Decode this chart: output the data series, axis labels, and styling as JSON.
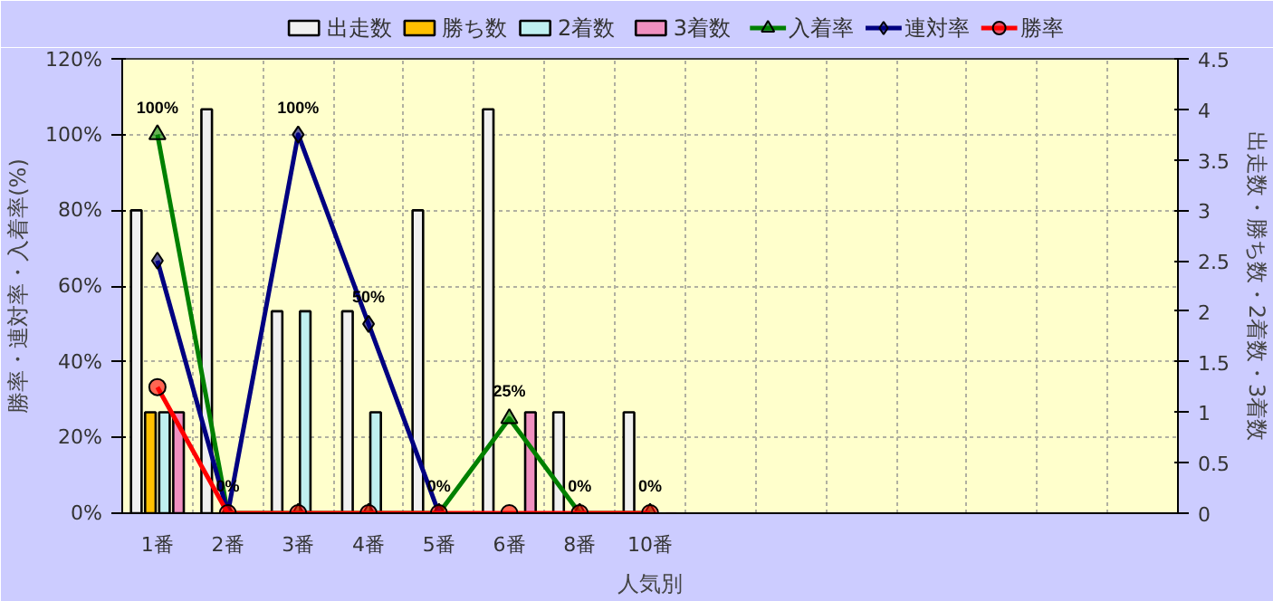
{
  "chart_data": {
    "type": "bar",
    "xlabel": "人気別",
    "ylabel": "勝率・連対率・入着率(%)",
    "y2label": "出走数・勝ち数・2着数・3着数",
    "categories": [
      "1番",
      "2番",
      "3番",
      "4番",
      "5番",
      "6番",
      "8番",
      "10番",
      null,
      null,
      null,
      null,
      null,
      null,
      null
    ],
    "series": [
      {
        "name": "出走数",
        "axis": "y2",
        "color": "#f0f0f0",
        "values": [
          3,
          4,
          2,
          2,
          3,
          4,
          1,
          1,
          null,
          null,
          null,
          null,
          null,
          null,
          null
        ]
      },
      {
        "name": "勝ち数",
        "axis": "y2",
        "color": "#ffc000",
        "values": [
          1,
          0,
          0,
          0,
          0,
          0,
          0,
          0,
          null,
          null,
          null,
          null,
          null,
          null,
          null
        ]
      },
      {
        "name": "2着数",
        "axis": "y2",
        "color": "#c0f0f0",
        "values": [
          1,
          0,
          2,
          1,
          0,
          0,
          0,
          0,
          null,
          null,
          null,
          null,
          null,
          null,
          null
        ]
      },
      {
        "name": "3着数",
        "axis": "y2",
        "color": "#f090c0",
        "values": [
          1,
          0,
          0,
          0,
          0,
          1,
          0,
          0,
          null,
          null,
          null,
          null,
          null,
          null,
          null
        ]
      },
      {
        "name": "入着率",
        "type": "line",
        "color": "#008000",
        "marker": "triangle",
        "values": [
          100,
          0,
          0,
          0,
          0,
          25,
          0,
          0,
          null,
          null,
          null,
          null,
          null,
          null,
          null
        ]
      },
      {
        "name": "連対率",
        "type": "line",
        "color": "#000080",
        "marker": "diamond",
        "values": [
          66.7,
          0,
          100,
          50,
          0,
          null,
          null,
          null,
          null,
          null,
          null,
          null,
          null,
          null,
          null
        ]
      },
      {
        "name": "勝率",
        "type": "line",
        "color": "#ff0000",
        "marker": "circle",
        "values": [
          33.3,
          0,
          0,
          0,
          0,
          0,
          0,
          0,
          null,
          null,
          null,
          null,
          null,
          null,
          null
        ]
      }
    ],
    "ylim": [
      0,
      120
    ],
    "yticks": [
      {
        "value": 0,
        "label": "0%"
      },
      {
        "value": 20,
        "label": "20%"
      },
      {
        "value": 40,
        "label": "40%"
      },
      {
        "value": 60,
        "label": "60%"
      },
      {
        "value": 80,
        "label": "80%"
      },
      {
        "value": 100,
        "label": "100%"
      },
      {
        "value": 120,
        "label": "120%"
      }
    ],
    "y2lim": [
      0,
      4.5
    ],
    "y2ticks": [
      0,
      0.5,
      1,
      1.5,
      2,
      2.5,
      3,
      3.5,
      4,
      4.5
    ],
    "annotations": [
      {
        "text": "100%",
        "x": "1番",
        "y": 100
      },
      {
        "text": "0%",
        "x": "2番",
        "y": 0
      },
      {
        "text": "100%",
        "x": "3番",
        "y": 100
      },
      {
        "text": "50%",
        "x": "4番",
        "y": 50
      },
      {
        "text": "0%",
        "x": "5番",
        "y": 0
      },
      {
        "text": "25%",
        "x": "6番",
        "y": 25
      },
      {
        "text": "0%",
        "x": "8番",
        "y": 0
      },
      {
        "text": "0%",
        "x": "10番",
        "y": 0
      }
    ],
    "grid": true,
    "legend": "top"
  }
}
